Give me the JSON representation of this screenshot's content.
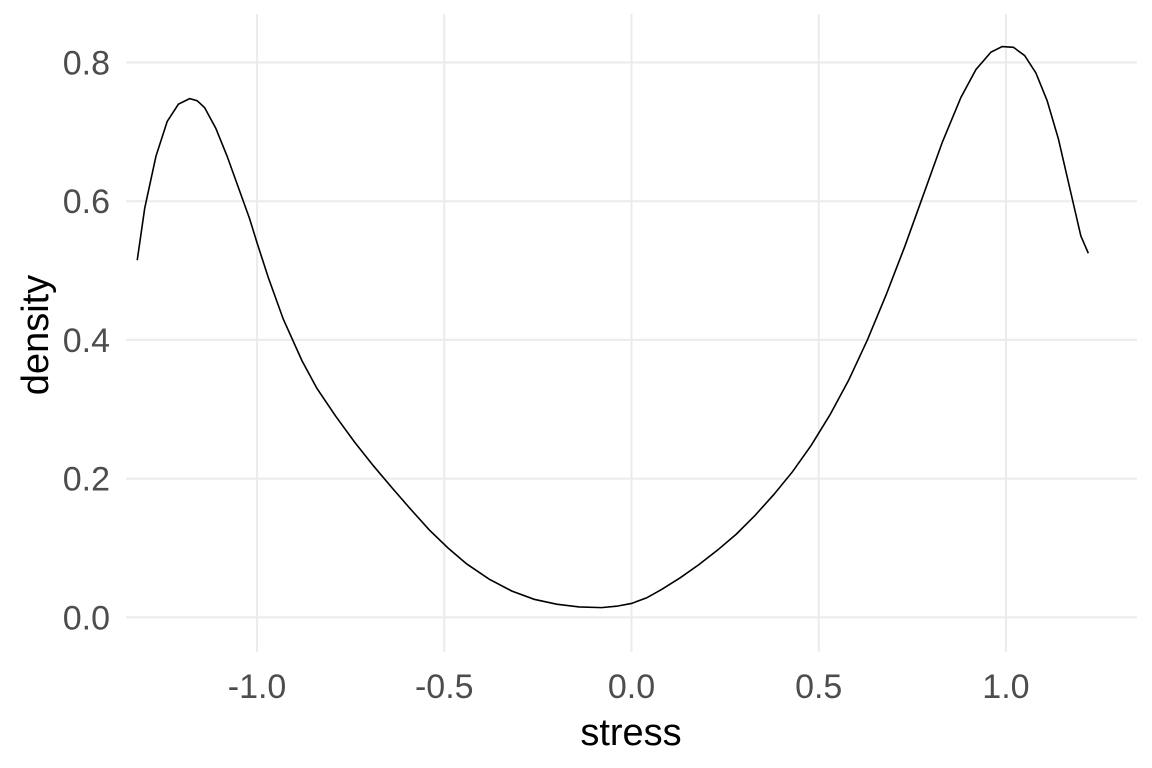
{
  "chart_data": {
    "type": "line",
    "title": "",
    "xlabel": "stress",
    "ylabel": "density",
    "xlim": [
      -1.35,
      1.35
    ],
    "ylim": [
      -0.05,
      0.87
    ],
    "x_ticks": [
      -1.0,
      -0.5,
      0.0,
      0.5,
      1.0
    ],
    "x_tick_labels": [
      "-1.0",
      "-0.5",
      "0.0",
      "0.5",
      "1.0"
    ],
    "y_ticks": [
      0.0,
      0.2,
      0.4,
      0.6,
      0.8
    ],
    "y_tick_labels": [
      "0.0",
      "0.2",
      "0.4",
      "0.6",
      "0.8"
    ],
    "grid": true,
    "legend": "none",
    "line_color": "#000000",
    "series": [
      {
        "x": [
          -1.32,
          -1.3,
          -1.27,
          -1.24,
          -1.21,
          -1.18,
          -1.16,
          -1.14,
          -1.11,
          -1.08,
          -1.05,
          -1.02,
          -1.0,
          -0.97,
          -0.93,
          -0.88,
          -0.84,
          -0.79,
          -0.74,
          -0.69,
          -0.64,
          -0.59,
          -0.54,
          -0.49,
          -0.44,
          -0.38,
          -0.32,
          -0.26,
          -0.2,
          -0.14,
          -0.08,
          -0.04,
          0.0,
          0.04,
          0.08,
          0.13,
          0.18,
          0.23,
          0.28,
          0.33,
          0.38,
          0.43,
          0.48,
          0.53,
          0.58,
          0.63,
          0.68,
          0.73,
          0.78,
          0.83,
          0.88,
          0.92,
          0.96,
          0.99,
          1.02,
          1.05,
          1.08,
          1.11,
          1.14,
          1.17,
          1.2,
          1.22
        ],
        "y": [
          0.515,
          0.59,
          0.665,
          0.715,
          0.74,
          0.748,
          0.745,
          0.735,
          0.705,
          0.665,
          0.62,
          0.575,
          0.54,
          0.49,
          0.43,
          0.37,
          0.33,
          0.29,
          0.253,
          0.219,
          0.187,
          0.156,
          0.126,
          0.1,
          0.077,
          0.055,
          0.038,
          0.026,
          0.019,
          0.015,
          0.014,
          0.016,
          0.02,
          0.028,
          0.04,
          0.057,
          0.076,
          0.097,
          0.12,
          0.147,
          0.177,
          0.21,
          0.248,
          0.292,
          0.342,
          0.4,
          0.465,
          0.535,
          0.61,
          0.685,
          0.75,
          0.79,
          0.815,
          0.823,
          0.822,
          0.81,
          0.785,
          0.745,
          0.69,
          0.62,
          0.55,
          0.525
        ]
      }
    ]
  }
}
